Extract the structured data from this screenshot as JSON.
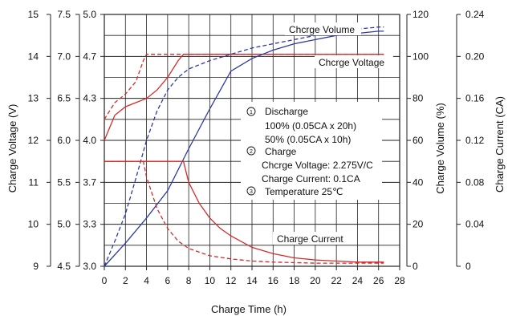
{
  "chart_data": {
    "type": "line",
    "x": {
      "label": "Charge Time (h)",
      "ticks": [
        0,
        2,
        4,
        6,
        8,
        10,
        12,
        14,
        16,
        18,
        20,
        22,
        24,
        26,
        28
      ],
      "range": [
        0,
        28
      ]
    },
    "left_axes": [
      {
        "label": "Charge Voltage (V)",
        "ticks": [
          "15",
          "14",
          "13",
          "12",
          "11",
          "10",
          "9"
        ],
        "range": [
          9,
          15
        ]
      },
      {
        "label": "",
        "ticks": [
          "7.5",
          "7.0",
          "6.5",
          "6.0",
          "5.5",
          "5.0",
          "4.5"
        ],
        "range": [
          4.5,
          7.5
        ]
      },
      {
        "label": "",
        "ticks": [
          "5.0",
          "4.7",
          "4.3",
          "4.0",
          "3.7",
          "3.3",
          "3.0"
        ],
        "range": [
          3.0,
          5.0
        ]
      }
    ],
    "right_axes": [
      {
        "label": "Charge Volume (%)",
        "ticks": [
          "120",
          "100",
          "80",
          "60",
          "40",
          "20",
          "0"
        ],
        "range": [
          0,
          120
        ]
      },
      {
        "label": "Charge Current (CA)",
        "ticks": [
          "0.24",
          "0.20",
          "0.16",
          "0.12",
          "0.08",
          "0.04",
          "0"
        ],
        "range": [
          0,
          0.24
        ]
      }
    ],
    "grid": true,
    "series": [
      {
        "name": "Chcrge Voltage",
        "axis": "Charge Voltage (V)",
        "color": "#d62a2a",
        "dash": "solid",
        "points": [
          [
            0,
            12.0
          ],
          [
            1,
            12.6
          ],
          [
            2,
            12.8
          ],
          [
            3,
            12.9
          ],
          [
            4,
            13.0
          ],
          [
            5,
            13.2
          ],
          [
            6,
            13.5
          ],
          [
            7,
            13.9
          ],
          [
            7.5,
            14.05
          ],
          [
            26.5,
            14.05
          ]
        ]
      },
      {
        "name": "",
        "axis": "Charge Voltage (V)",
        "color": "#d62a2a",
        "dash": "dashed",
        "points": [
          [
            0,
            12.5
          ],
          [
            1,
            12.9
          ],
          [
            2,
            13.1
          ],
          [
            3,
            13.4
          ],
          [
            3.7,
            13.9
          ],
          [
            4,
            14.05
          ],
          [
            26.5,
            14.05
          ]
        ]
      },
      {
        "name": "Chcrge Volume",
        "axis": "Charge Volume (%)",
        "color": "#2d3aa0",
        "dash": "solid",
        "points": [
          [
            0,
            0
          ],
          [
            2,
            11
          ],
          [
            4,
            23
          ],
          [
            6,
            36
          ],
          [
            8,
            56
          ],
          [
            10,
            75
          ],
          [
            12,
            93
          ],
          [
            14,
            99
          ],
          [
            16,
            103
          ],
          [
            18,
            106
          ],
          [
            20,
            108
          ],
          [
            22,
            110
          ],
          [
            24,
            111
          ],
          [
            26,
            112
          ],
          [
            26.5,
            112
          ]
        ]
      },
      {
        "name": "",
        "axis": "Charge Volume (%)",
        "color": "#2d3aa0",
        "dash": "dashed",
        "points": [
          [
            0,
            0
          ],
          [
            1,
            12
          ],
          [
            2,
            25
          ],
          [
            3,
            42
          ],
          [
            4,
            60
          ],
          [
            5,
            74
          ],
          [
            6,
            84
          ],
          [
            7,
            90
          ],
          [
            8,
            94
          ],
          [
            10,
            98
          ],
          [
            12,
            101
          ],
          [
            14,
            104
          ],
          [
            16,
            106
          ],
          [
            18,
            108
          ],
          [
            20,
            110
          ],
          [
            22,
            112
          ],
          [
            24,
            113
          ],
          [
            26,
            114
          ],
          [
            26.5,
            114
          ]
        ]
      },
      {
        "name": "Charge Current",
        "axis": "Charge Current (CA)",
        "color": "#d62a2a",
        "dash": "solid",
        "points": [
          [
            0,
            0.1
          ],
          [
            7.5,
            0.1
          ],
          [
            8,
            0.08
          ],
          [
            9,
            0.06
          ],
          [
            10,
            0.046
          ],
          [
            11,
            0.036
          ],
          [
            12,
            0.029
          ],
          [
            14,
            0.018
          ],
          [
            16,
            0.012
          ],
          [
            18,
            0.008
          ],
          [
            20,
            0.006
          ],
          [
            22,
            0.005
          ],
          [
            24,
            0.004
          ],
          [
            26.5,
            0.004
          ]
        ]
      },
      {
        "name": "",
        "axis": "Charge Current (CA)",
        "color": "#d62a2a",
        "dash": "dashed",
        "points": [
          [
            0,
            0.1
          ],
          [
            3.7,
            0.1
          ],
          [
            4,
            0.085
          ],
          [
            5,
            0.055
          ],
          [
            6,
            0.036
          ],
          [
            7,
            0.024
          ],
          [
            8,
            0.017
          ],
          [
            10,
            0.01
          ],
          [
            12,
            0.007
          ],
          [
            14,
            0.005
          ],
          [
            16,
            0.004
          ],
          [
            20,
            0.003
          ],
          [
            26.5,
            0.003
          ]
        ]
      }
    ],
    "annotations": {
      "discharge_title": "Discharge",
      "discharge_100": "100%  (0.05CA x 20h)",
      "discharge_50": "50%  (0.05CA x 10h)",
      "charge_title": "Charge",
      "charge_voltage": "Chcrge Voltage: 2.275V/C",
      "charge_current": "Charge Current: 0.1CA",
      "temperature": "Temperature 25℃"
    }
  }
}
